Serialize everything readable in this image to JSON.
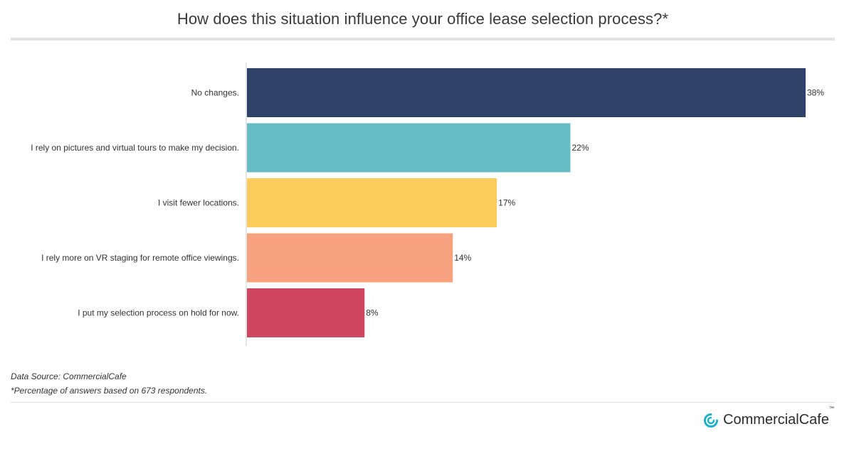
{
  "title": "How does this situation influence your office lease selection process?*",
  "notes": {
    "source": "Data Source: CommercialCafe",
    "footnote": "*Percentage of answers based on 673 respondents."
  },
  "brand": {
    "name": "CommercialCafe",
    "trademark": "™",
    "logo_icon": "commercialcafe-logo-icon",
    "logo_color": "#20b3c8"
  },
  "chart_data": {
    "type": "bar",
    "orientation": "horizontal",
    "categories": [
      "No changes.",
      "I rely on pictures and virtual tours to make my decision.",
      "I visit fewer locations.",
      "I rely more on VR staging for remote office viewings.",
      "I put my selection process on hold for now."
    ],
    "values": [
      38,
      22,
      17,
      14,
      8
    ],
    "value_labels": [
      "38%",
      "22%",
      "17%",
      "14%",
      "8%"
    ],
    "colors": [
      "#2f426a",
      "#67bbc4",
      "#fecc5c",
      "#f7a27e",
      "#cf465e"
    ],
    "xlim": [
      0,
      38
    ],
    "grid": false,
    "legend": "none"
  }
}
